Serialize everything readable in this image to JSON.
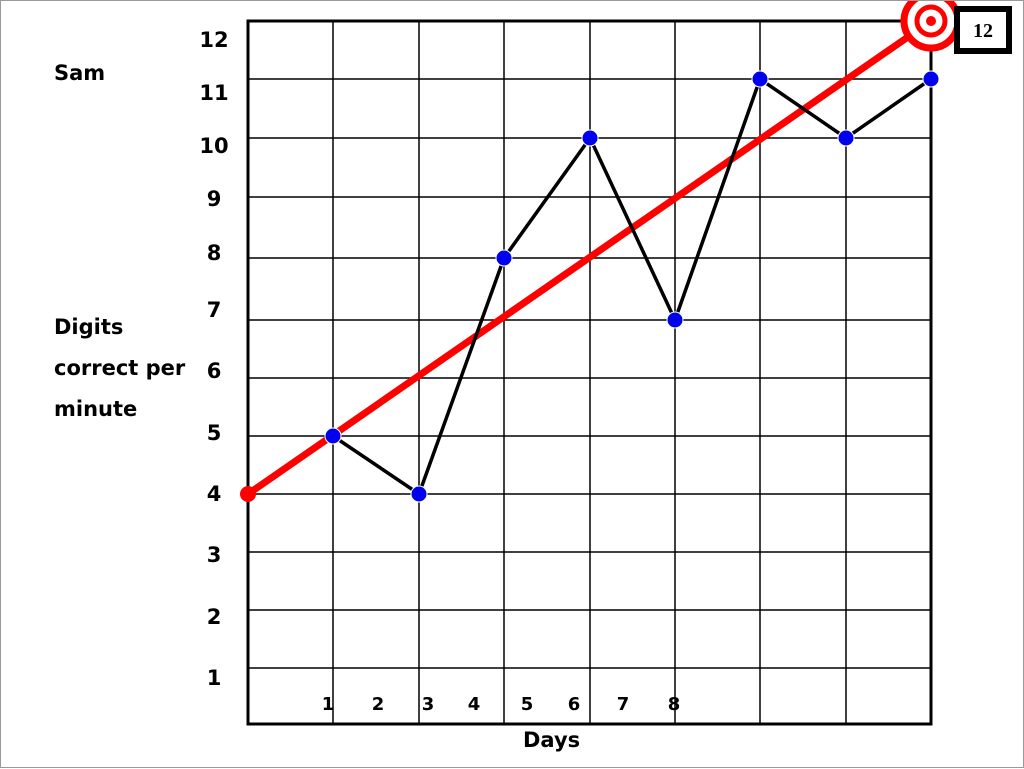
{
  "student_name": "Sam",
  "chart_data": {
    "type": "line",
    "xlabel": "Days",
    "ylabel": "Digits correct per minute",
    "ylim": [
      0,
      12
    ],
    "y_ticks": [
      "1",
      "2",
      "3",
      "4",
      "5",
      "6",
      "7",
      "8",
      "9",
      "10",
      "11",
      "12"
    ],
    "x_ticks": [
      "1",
      "2",
      "3",
      "4",
      "5",
      "6",
      "7",
      "8"
    ],
    "grid": true,
    "series": [
      {
        "kind": "data-points",
        "x": [
          1,
          2,
          3,
          4,
          5,
          6,
          7,
          8
        ],
        "values": [
          5,
          4,
          8,
          10,
          7,
          11,
          10,
          11
        ],
        "point_color": "#0000ee",
        "line_color": "#000000"
      }
    ],
    "aim_line": {
      "from": [
        0,
        4
      ],
      "to": [
        8,
        12
      ],
      "color": "#ff0000"
    },
    "goal": {
      "value": "12",
      "marker": "target-icon",
      "color": "#ff0000"
    }
  }
}
